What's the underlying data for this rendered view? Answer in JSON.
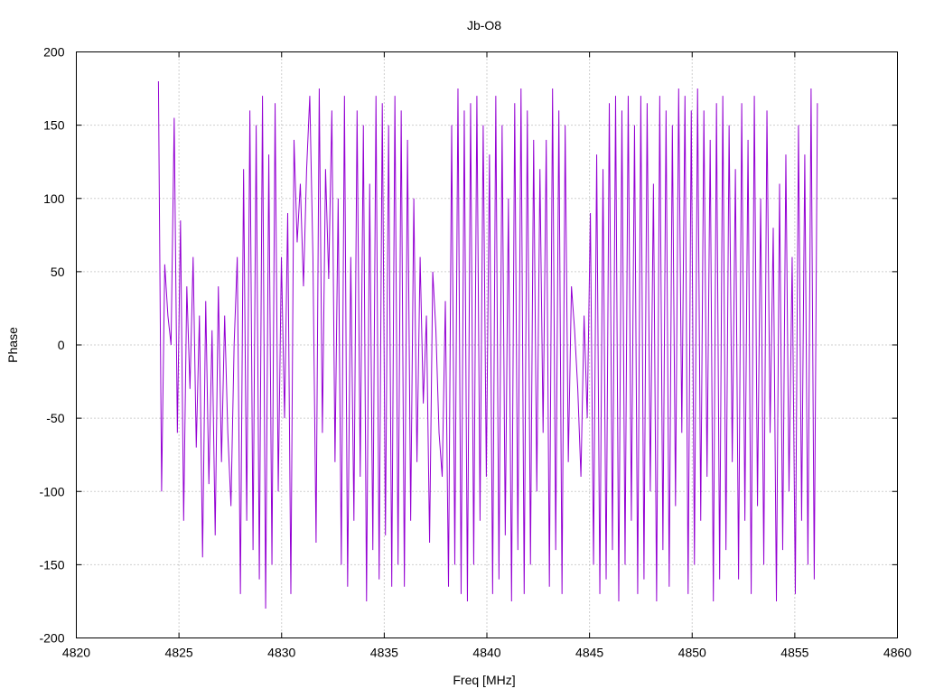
{
  "chart_data": {
    "type": "line",
    "title": "Jb-O8",
    "xlabel": "Freq [MHz]",
    "ylabel": "Phase",
    "xlim": [
      4820,
      4860
    ],
    "ylim": [
      -200,
      200
    ],
    "xticks": [
      4820,
      4825,
      4830,
      4835,
      4840,
      4845,
      4850,
      4855,
      4860
    ],
    "yticks": [
      -200,
      -150,
      -100,
      -50,
      0,
      50,
      100,
      150,
      200
    ],
    "x_tick_labels": [
      "4820",
      "4825",
      "4830",
      "4835",
      "4840",
      "4845",
      "4850",
      "4855",
      "4860"
    ],
    "y_tick_labels": [
      "-200",
      "-150",
      "-100",
      "-50",
      "0",
      "50",
      "100",
      "150",
      "200"
    ],
    "grid": true,
    "legend": "none",
    "series_color": "#9400d3",
    "series": [
      {
        "x_start": 4824.0,
        "x_end": 4856.1,
        "y": [
          180,
          -100,
          55,
          20,
          0,
          155,
          -60,
          85,
          -120,
          40,
          -30,
          60,
          -70,
          20,
          -145,
          30,
          -95,
          10,
          -130,
          40,
          -80,
          20,
          -60,
          -110,
          0,
          60,
          -170,
          120,
          -120,
          160,
          -140,
          150,
          -160,
          170,
          -180,
          130,
          -150,
          165,
          -100,
          60,
          -50,
          90,
          -170,
          140,
          70,
          110,
          40,
          120,
          170,
          60,
          -135,
          175,
          -60,
          120,
          45,
          160,
          -80,
          100,
          -150,
          170,
          -165,
          60,
          -120,
          160,
          -90,
          150,
          -175,
          110,
          -140,
          170,
          -160,
          165,
          -130,
          150,
          -165,
          170,
          -150,
          160,
          -165,
          140,
          -120,
          100,
          -80,
          60,
          -40,
          20,
          -135,
          50,
          10,
          -60,
          -90,
          30,
          -165,
          150,
          -150,
          175,
          -170,
          160,
          -175,
          165,
          -150,
          170,
          -120,
          150,
          -90,
          130,
          -170,
          170,
          -160,
          150,
          -130,
          100,
          -175,
          165,
          -140,
          175,
          -170,
          160,
          -150,
          140,
          -100,
          120,
          -60,
          140,
          -165,
          175,
          -140,
          160,
          -170,
          150,
          -80,
          40,
          10,
          -30,
          -90,
          20,
          -50,
          90,
          -150,
          130,
          -170,
          120,
          -160,
          165,
          -140,
          170,
          -175,
          160,
          -150,
          170,
          -120,
          150,
          -170,
          170,
          -160,
          165,
          -100,
          110,
          -175,
          170,
          -140,
          160,
          -165,
          150,
          -110,
          175,
          -60,
          170,
          -170,
          160,
          -150,
          175,
          -120,
          160,
          -90,
          140,
          -175,
          165,
          -160,
          170,
          -140,
          150,
          -80,
          120,
          -160,
          165,
          -120,
          140,
          -170,
          170,
          -110,
          100,
          -150,
          160,
          -60,
          80,
          -175,
          110,
          -140,
          130,
          -100,
          60,
          -170,
          150,
          -120,
          130,
          -150,
          175,
          -160,
          165
        ]
      }
    ]
  }
}
